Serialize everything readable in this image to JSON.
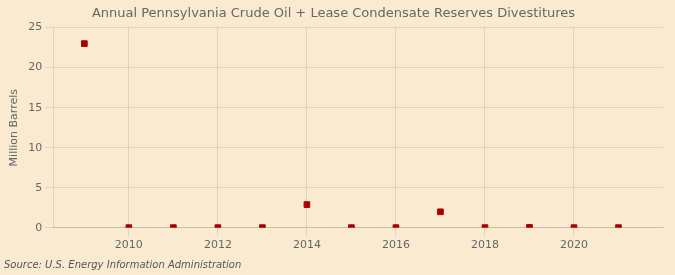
{
  "chart_data": {
    "type": "scatter",
    "title": "Annual Pennsylvania Crude Oil + Lease Condensate Reserves Divestitures",
    "ylabel": "Million Barrels",
    "annotation": "Source: U.S. Energy Information Administration",
    "x": [
      2009,
      2010,
      2011,
      2012,
      2013,
      2014,
      2015,
      2016,
      2017,
      2018,
      2019,
      2020,
      2021
    ],
    "values": [
      23.0,
      0.02,
      0.02,
      0.02,
      0.02,
      2.9,
      0.02,
      0.02,
      2.0,
      0.02,
      0.05,
      0.02,
      0.02
    ],
    "color": "#aa0000",
    "marker": "square",
    "xlim": [
      2008.3,
      2022.0
    ],
    "ylim": [
      0,
      25
    ],
    "xticks": [
      2010,
      2012,
      2014,
      2016,
      2018,
      2020
    ],
    "yticks": [
      0,
      5,
      10,
      15,
      20,
      25
    ],
    "grid": true
  }
}
